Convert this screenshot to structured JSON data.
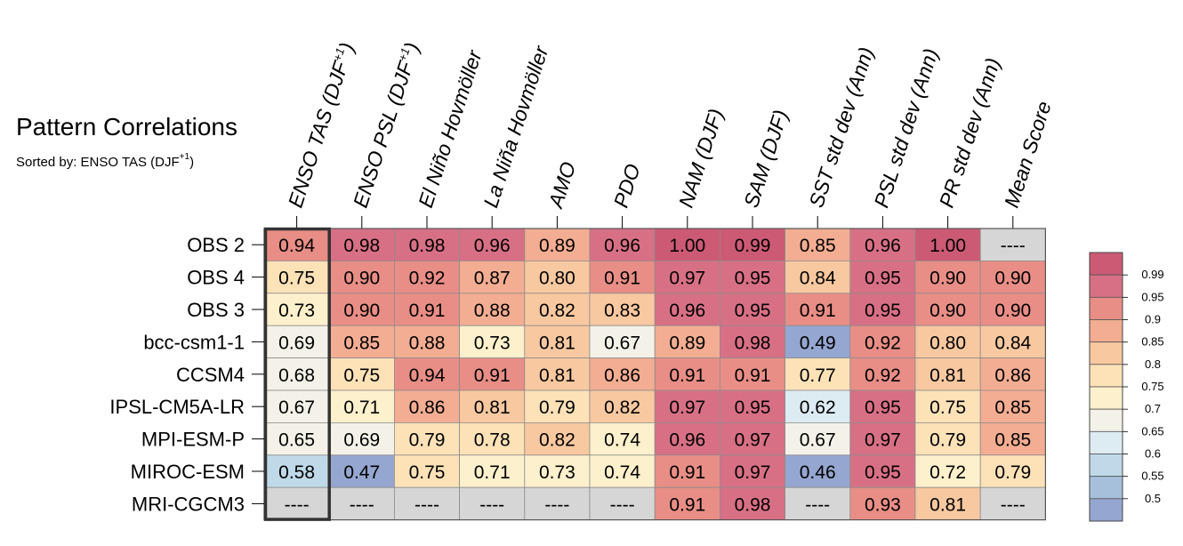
{
  "chart_data": {
    "type": "heatmap",
    "title": "Pattern Correlations",
    "subtitle": {
      "prefix": "Sorted by: ENSO TAS (DJF",
      "sup": "+1",
      "suffix": ")"
    },
    "columns": [
      {
        "label": "ENSO TAS (DJF",
        "sup": "+1",
        "suffix": ")"
      },
      {
        "label": "ENSO PSL (DJF",
        "sup": "+1",
        "suffix": ")"
      },
      {
        "label": "El Niño Hovmöller"
      },
      {
        "label": "La Niña Hovmöller"
      },
      {
        "label": "AMO"
      },
      {
        "label": "PDO"
      },
      {
        "label": "NAM (DJF)"
      },
      {
        "label": "SAM (DJF)"
      },
      {
        "label": "SST std dev (Ann)"
      },
      {
        "label": "PSL std dev (Ann)"
      },
      {
        "label": "PR std dev (Ann)"
      },
      {
        "label": "Mean Score"
      }
    ],
    "rows": [
      "OBS 2",
      "OBS 4",
      "OBS 3",
      "bcc-csm1-1",
      "CCSM4",
      "IPSL-CM5A-LR",
      "MPI-ESM-P",
      "MIROC-ESM",
      "MRI-CGCM3"
    ],
    "missing_text": "----",
    "highlight_column": 0,
    "values": [
      [
        "0.94",
        "0.98",
        "0.98",
        "0.96",
        "0.89",
        "0.96",
        "1.00",
        "0.99",
        "0.85",
        "0.96",
        "1.00",
        null
      ],
      [
        "0.75",
        "0.90",
        "0.92",
        "0.87",
        "0.80",
        "0.91",
        "0.97",
        "0.95",
        "0.84",
        "0.95",
        "0.90",
        "0.90"
      ],
      [
        "0.73",
        "0.90",
        "0.91",
        "0.88",
        "0.82",
        "0.83",
        "0.96",
        "0.95",
        "0.91",
        "0.95",
        "0.90",
        "0.90"
      ],
      [
        "0.69",
        "0.85",
        "0.88",
        "0.73",
        "0.81",
        "0.67",
        "0.89",
        "0.98",
        "0.49",
        "0.92",
        "0.80",
        "0.84"
      ],
      [
        "0.68",
        "0.75",
        "0.94",
        "0.91",
        "0.81",
        "0.86",
        "0.91",
        "0.91",
        "0.77",
        "0.92",
        "0.81",
        "0.86"
      ],
      [
        "0.67",
        "0.71",
        "0.86",
        "0.81",
        "0.79",
        "0.82",
        "0.97",
        "0.95",
        "0.62",
        "0.95",
        "0.75",
        "0.85"
      ],
      [
        "0.65",
        "0.69",
        "0.79",
        "0.78",
        "0.82",
        "0.74",
        "0.96",
        "0.97",
        "0.67",
        "0.97",
        "0.79",
        "0.85"
      ],
      [
        "0.58",
        "0.47",
        "0.75",
        "0.71",
        "0.73",
        "0.74",
        "0.91",
        "0.97",
        "0.46",
        "0.95",
        "0.72",
        "0.79"
      ],
      [
        null,
        null,
        null,
        null,
        null,
        null,
        "0.91",
        "0.98",
        null,
        "0.93",
        "0.81",
        null
      ]
    ],
    "colorbar": {
      "labels": [
        "0.99",
        "0.95",
        "0.9",
        "0.85",
        "0.8",
        "0.75",
        "0.7",
        "0.65",
        "0.6",
        "0.55",
        "0.5"
      ],
      "thresholds": [
        0.5,
        0.55,
        0.6,
        0.65,
        0.7,
        0.75,
        0.8,
        0.85,
        0.9,
        0.95,
        0.99
      ],
      "colors": [
        "#95a6d0",
        "#a6c0dc",
        "#c0d9e8",
        "#ddecf2",
        "#f4f2e8",
        "#fdf0cc",
        "#fde2b8",
        "#f8c8a0",
        "#f3ad92",
        "#e88e86",
        "#d87085",
        "#cc5a75"
      ],
      "missing_color": "#d6d6d6"
    },
    "grid": true
  }
}
